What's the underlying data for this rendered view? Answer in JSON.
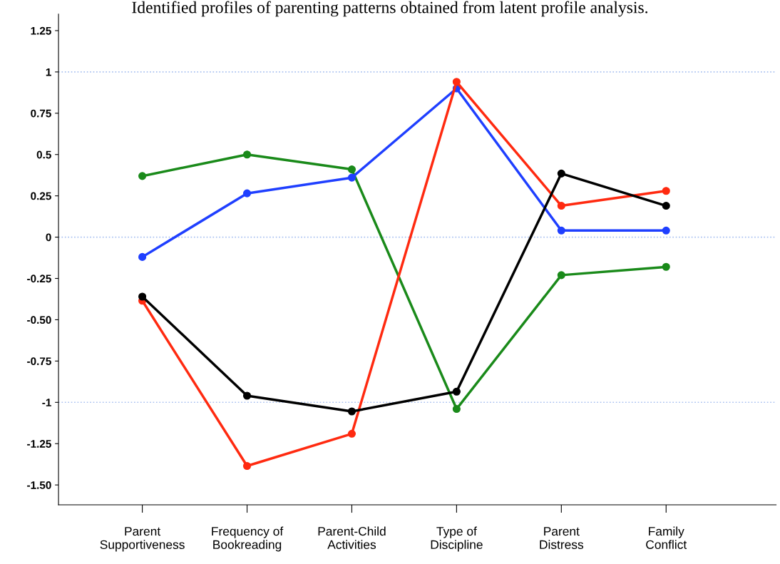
{
  "chart_data": {
    "type": "line",
    "title": "Identified profiles of parenting patterns obtained from latent profile analysis.",
    "categories": [
      "Parent\nSupportiveness",
      "Frequency of\nBookreading",
      "Parent-Child\nActivities",
      "Type of\nDiscipline",
      "Parent\nDistress",
      "Family\nConflict"
    ],
    "series": [
      {
        "color": "#1a8a1a",
        "values": [
          0.37,
          0.5,
          0.41,
          -1.04,
          -0.23,
          -0.18
        ]
      },
      {
        "color": "#1f3fff",
        "values": [
          -0.12,
          0.265,
          0.36,
          0.9,
          0.04,
          0.04
        ]
      },
      {
        "color": "#ff2a10",
        "values": [
          -0.385,
          -1.385,
          -1.19,
          0.94,
          0.19,
          0.28
        ]
      },
      {
        "color": "#000000",
        "values": [
          -0.36,
          -0.96,
          -1.055,
          -0.935,
          0.385,
          0.19
        ]
      }
    ],
    "ylim": [
      -1.62,
      1.35
    ],
    "yticks": [
      1.25,
      1,
      0.75,
      0.5,
      0.25,
      0,
      -0.25,
      {
        "value": -0.5,
        "label": "-0.50"
      },
      -0.75,
      -1,
      -1.25,
      {
        "value": -1.5,
        "label": "-1.50"
      }
    ],
    "ref_lines": [
      {
        "axis": "y",
        "value": 1,
        "color": "#a8c0f0",
        "line_style": "dotted"
      },
      {
        "axis": "y",
        "value": 0,
        "color": "#a8c0f0",
        "line_style": "dotted"
      },
      {
        "axis": "y",
        "value": -1,
        "color": "#a8c0f0",
        "line_style": "dotted"
      }
    ],
    "marker": "circle",
    "line_style": "solid",
    "grid": false,
    "legend": false
  }
}
